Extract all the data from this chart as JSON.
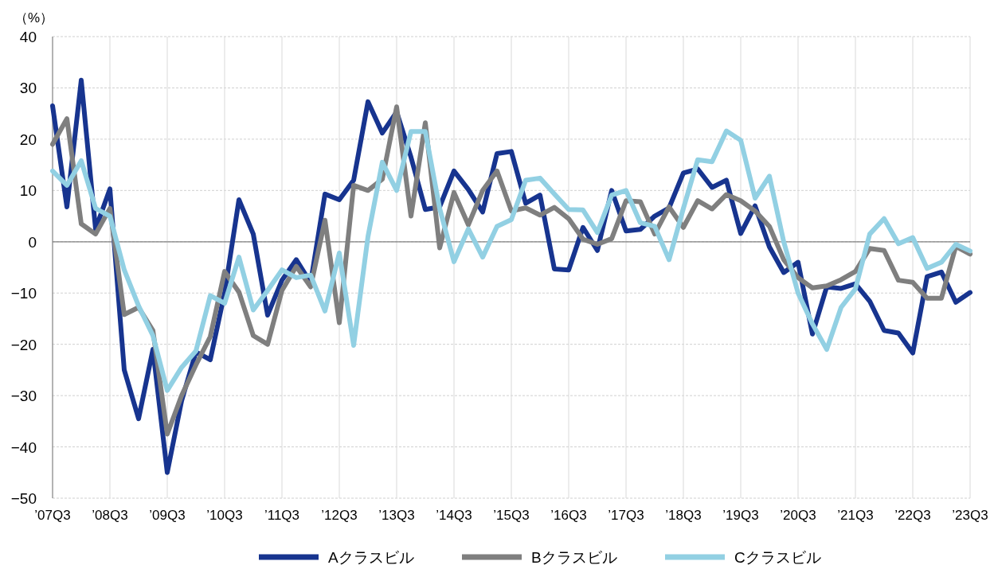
{
  "chart_data": {
    "type": "line",
    "ylabel": "（%）",
    "categories": [
      "’07Q3",
      null,
      null,
      null,
      "’08Q3",
      null,
      null,
      null,
      "’09Q3",
      null,
      null,
      null,
      "’10Q3",
      null,
      null,
      null,
      "’11Q3",
      null,
      null,
      null,
      "’12Q3",
      null,
      null,
      null,
      "’13Q3",
      null,
      null,
      null,
      "’14Q3",
      null,
      null,
      null,
      "’15Q3",
      null,
      null,
      null,
      "’16Q3",
      null,
      null,
      null,
      "’17Q3",
      null,
      null,
      null,
      "’18Q3",
      null,
      null,
      null,
      "’19Q3",
      null,
      null,
      null,
      "’20Q3",
      null,
      null,
      null,
      "’21Q3",
      null,
      null,
      null,
      "’22Q3",
      null,
      null,
      null,
      "’23Q3"
    ],
    "series": [
      {
        "name": "Aクラスビル",
        "color": "#17348f",
        "values": [
          26.5,
          6.8,
          31.5,
          2.5,
          10.3,
          -25,
          -34.5,
          -21,
          -45,
          -31,
          -21.5,
          -23,
          -10,
          8.2,
          1.5,
          -14.3,
          -7.5,
          -3.5,
          -8,
          9.3,
          8.2,
          12,
          27.3,
          21.2,
          25.3,
          16.5,
          6.3,
          6.8,
          13.8,
          10.2,
          5.8,
          17.2,
          17.6,
          7.5,
          9.1,
          -5.3,
          -5.5,
          2.8,
          -1.7,
          10,
          2.1,
          2.4,
          5,
          6.6,
          13.4,
          14.2,
          10.6,
          12,
          1.6,
          7,
          -1,
          -6,
          -4,
          -18,
          -8.8,
          -9.1,
          -8.2,
          -11.6,
          -17.3,
          -17.8,
          -21.7,
          -6.8,
          -5.9,
          -11.8,
          -9.9
        ]
      },
      {
        "name": "Bクラスビル",
        "color": "#7f7f7f",
        "values": [
          19,
          24,
          3.5,
          1.5,
          6.5,
          -14.2,
          -12.8,
          -17.3,
          -37.5,
          -30,
          -24,
          -18.5,
          -5.8,
          -9.8,
          -18.3,
          -20,
          -9.5,
          -4.8,
          -8.8,
          4.2,
          -15.8,
          11,
          10,
          12.2,
          26.3,
          5,
          23.2,
          -1.2,
          9.6,
          3.3,
          10,
          13.8,
          6,
          6.6,
          5.2,
          6.7,
          4.5,
          0.5,
          -0.5,
          0.6,
          8,
          7.8,
          1.5,
          6.8,
          2.8,
          8,
          6.4,
          9.2,
          8,
          6,
          3,
          -3.5,
          -7,
          -9,
          -8.6,
          -7.4,
          -5.8,
          -1.3,
          -1.7,
          -7.5,
          -7.9,
          -11,
          -11,
          -0.9,
          -2.4
        ]
      },
      {
        "name": "Cクラスビル",
        "color": "#92d0e3",
        "values": [
          13.8,
          11,
          15.8,
          6.5,
          5,
          -5.5,
          -12.5,
          -18.3,
          -29,
          -24.5,
          -21.3,
          -10.5,
          -12,
          -3,
          -13.3,
          -9.5,
          -5.5,
          -7,
          -6.5,
          -13.5,
          -2.2,
          -20.2,
          1,
          15.5,
          10,
          21.5,
          21.5,
          6.5,
          -3.9,
          2.5,
          -3,
          3,
          4.3,
          12,
          12.4,
          9.3,
          6.3,
          6.2,
          1.8,
          9.1,
          10,
          3.7,
          3,
          -3.5,
          6.5,
          16,
          15.6,
          21.6,
          19.8,
          8.5,
          12.8,
          0,
          -10,
          -16,
          -21,
          -12.8,
          -9.2,
          1.5,
          4.5,
          -0.4,
          0.8,
          -5.2,
          -4,
          -0.5,
          -1.8
        ]
      }
    ],
    "ylim": [
      -50,
      40
    ],
    "yticks": [
      -50,
      -40,
      -30,
      -20,
      -10,
      0,
      10,
      20,
      30,
      40
    ],
    "grid": true,
    "legend": "bottom",
    "marker": "none",
    "line_style": "solid"
  }
}
